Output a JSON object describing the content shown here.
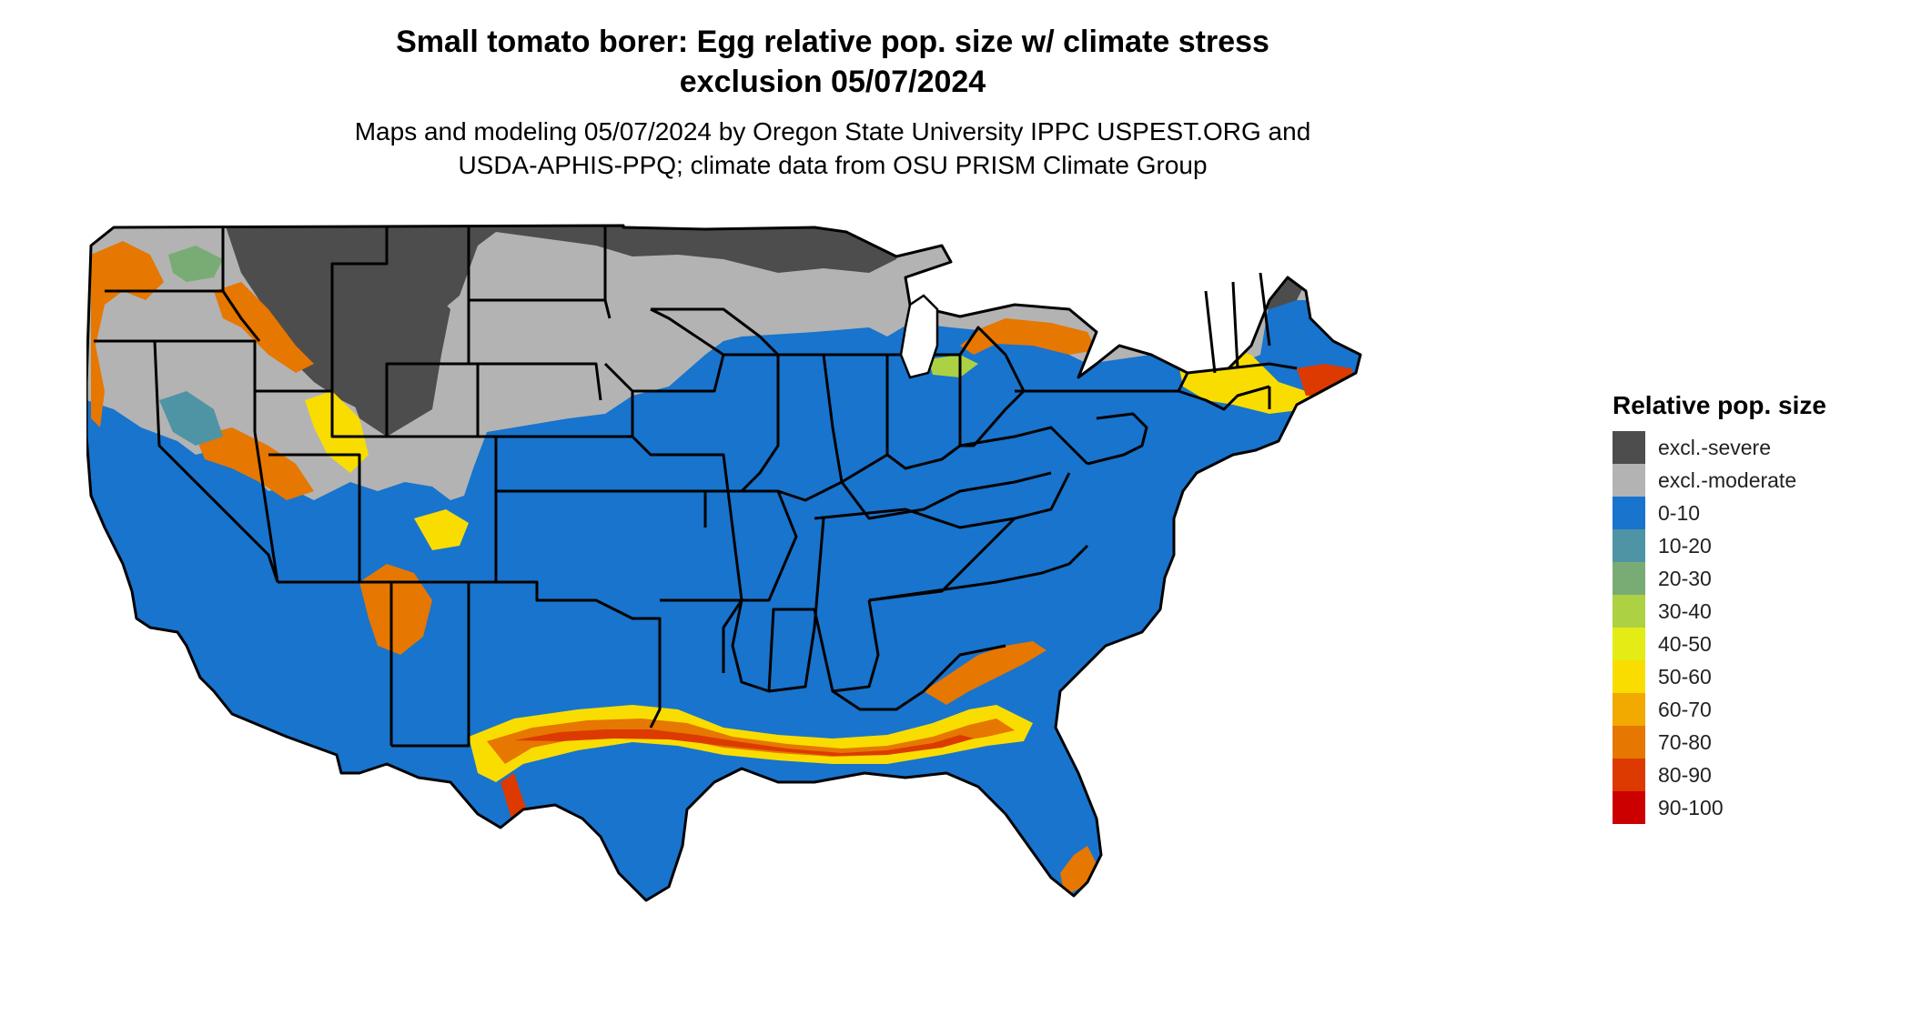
{
  "title_line1": "Small tomato borer: Egg relative pop. size w/ climate stress",
  "title_line2": "exclusion 05/07/2024",
  "subtitle_line1": "Maps and modeling 05/07/2024 by Oregon State University IPPC USPEST.ORG and",
  "subtitle_line2": "USDA-APHIS-PPQ; climate data from OSU PRISM Climate Group",
  "legend": {
    "title": "Relative pop. size",
    "items": [
      {
        "label": "excl.-severe",
        "color": "#4d4d4d"
      },
      {
        "label": "excl.-moderate",
        "color": "#b3b3b3"
      },
      {
        "label": "0-10",
        "color": "#1874cd"
      },
      {
        "label": "10-20",
        "color": "#4f94a4"
      },
      {
        "label": "20-30",
        "color": "#79ac74"
      },
      {
        "label": "30-40",
        "color": "#acd143"
      },
      {
        "label": "40-50",
        "color": "#e3ec14"
      },
      {
        "label": "50-60",
        "color": "#f9dd00"
      },
      {
        "label": "60-70",
        "color": "#f2a900"
      },
      {
        "label": "70-80",
        "color": "#e67700"
      },
      {
        "label": "80-90",
        "color": "#dc3a00"
      },
      {
        "label": "90-100",
        "color": "#cd0000"
      }
    ]
  }
}
